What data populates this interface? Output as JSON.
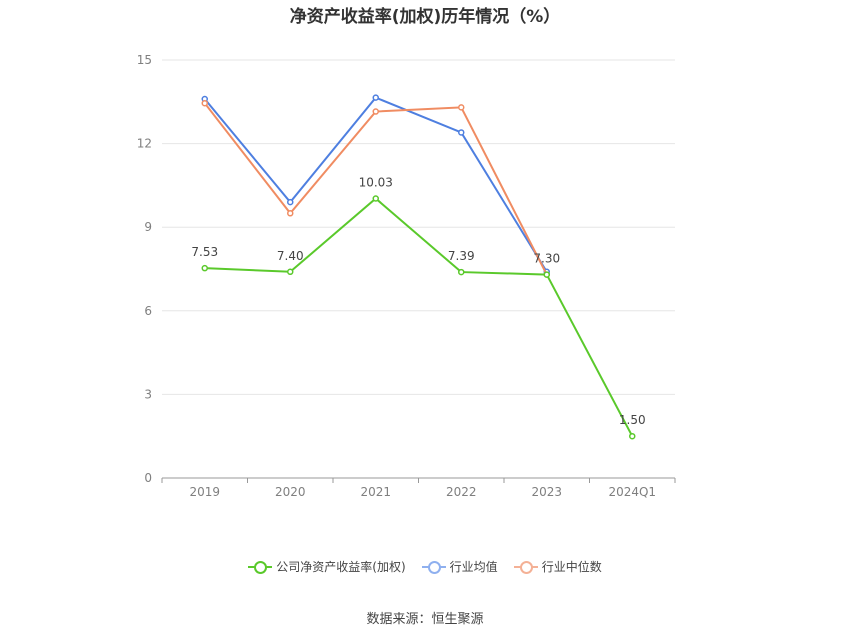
{
  "title": "净资产收益率(加权)历年情况（%）",
  "source": "数据来源：恒生聚源",
  "chart_data": {
    "type": "line",
    "categories": [
      "2019",
      "2020",
      "2021",
      "2022",
      "2023",
      "2024Q1"
    ],
    "ylim": [
      0,
      15
    ],
    "yticks": [
      0,
      3,
      6,
      9,
      12,
      15
    ],
    "grid": true,
    "legend_position": "bottom",
    "series": [
      {
        "name": "公司净资产收益率(加权)",
        "color": "#5ac92b",
        "values": [
          7.53,
          7.4,
          10.03,
          7.39,
          7.3,
          1.5
        ],
        "labels": [
          "7.53",
          "7.40",
          "10.03",
          "7.39",
          "7.30",
          "1.50"
        ]
      },
      {
        "name": "行业均值",
        "color": "#4e7fe0",
        "values": [
          13.6,
          9.9,
          13.65,
          12.4,
          7.4,
          null
        ]
      },
      {
        "name": "行业中位数",
        "color": "#f08c62",
        "values": [
          13.45,
          9.5,
          13.15,
          13.3,
          7.3,
          null
        ]
      }
    ]
  }
}
